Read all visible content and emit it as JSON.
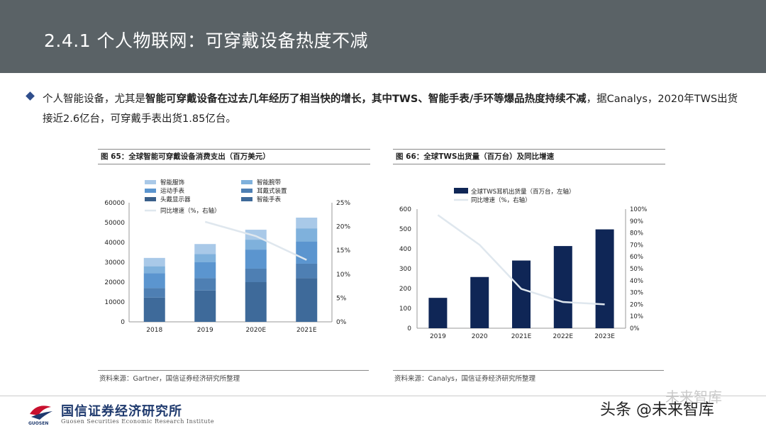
{
  "header": {
    "title": "2.4.1 个人物联网：可穿戴设备热度不减"
  },
  "intro": {
    "p1": "个人智能设备，尤其是",
    "b1": "智能可穿戴设备在过去几年经历了相当快的增长，其中TWS、智能手表/手环等爆品热度持续不减",
    "p2": "，据Canalys，2020年TWS出货接近2.6亿台，可穿戴手表出货1.85亿台。"
  },
  "chart65": {
    "title_bar": "图 65：全球智能可穿戴设备消费支出（百万美元）",
    "source": "资料来源：Gartner，国信证券经济研究所整理",
    "chart_data": {
      "type": "bar",
      "stacked": true,
      "categories": [
        "2018",
        "2019",
        "2020E",
        "2021E"
      ],
      "series": [
        {
          "name": "头戴显示器",
          "values": [
            0,
            0,
            0,
            0
          ]
        },
        {
          "name": "智能手表",
          "values": [
            12200,
            15800,
            20000,
            22000
          ]
        },
        {
          "name": "耳戴式装置",
          "values": [
            4800,
            6200,
            6800,
            7300
          ]
        },
        {
          "name": "运动手表",
          "values": [
            7500,
            8000,
            9600,
            11200
          ]
        },
        {
          "name": "智能腕带",
          "values": [
            3500,
            4100,
            5000,
            6600
          ]
        },
        {
          "name": "智能服饰",
          "values": [
            4200,
            5100,
            5000,
            5400
          ]
        }
      ],
      "line": {
        "name": "同比增速（%，右轴）",
        "values": [
          null,
          21,
          18,
          13
        ]
      },
      "ylim": [
        0,
        60000
      ],
      "yticks": [
        "0",
        "10000",
        "20000",
        "30000",
        "40000",
        "50000",
        "60000"
      ],
      "y2lim": [
        0,
        25
      ],
      "y2ticks": [
        "0%",
        "5%",
        "10%",
        "15%",
        "20%",
        "25%"
      ],
      "colors": {
        "头戴显示器": "#3a5f8a",
        "智能手表": "#3e6a9a",
        "耳戴式装置": "#4e7fb3",
        "运动手表": "#5b95cf",
        "智能腕带": "#7fb1dc",
        "智能服饰": "#a9c9e8",
        "line": "#dfe7ee"
      },
      "legend": [
        "智能服饰",
        "智能腕带",
        "运动手表",
        "耳戴式装置",
        "头戴显示器",
        "智能手表",
        "同比增速（%，右轴）"
      ]
    }
  },
  "chart66": {
    "title_bar": "图 66：全球TWS出货量（百万台）及同比增速",
    "source": "资料来源：Canalys，国信证券经济研究所整理",
    "chart_data": {
      "type": "bar",
      "categories": [
        "2019",
        "2020",
        "2021E",
        "2022E",
        "2023E"
      ],
      "series": [
        {
          "name": "全球TWS耳机出货量（百万台，左轴）",
          "values": [
            153,
            258,
            341,
            414,
            498
          ]
        }
      ],
      "line": {
        "name": "同比增速（%，右轴）",
        "values": [
          95,
          70,
          33,
          22,
          20
        ]
      },
      "ylim": [
        0,
        600
      ],
      "yticks": [
        "0",
        "100",
        "200",
        "300",
        "400",
        "500",
        "600"
      ],
      "y2lim": [
        0,
        100
      ],
      "y2ticks": [
        "0%",
        "10%",
        "20%",
        "30%",
        "40%",
        "50%",
        "60%",
        "70%",
        "80%",
        "90%",
        "100%"
      ],
      "colors": {
        "bar": "#0f2656",
        "line": "#dfe7ee"
      },
      "legend": [
        "全球TWS耳机出货量（百万台，左轴）",
        "同比增速（%，右轴）"
      ]
    }
  },
  "footer": {
    "company": "国信证券经济研究所",
    "company_en": "Guosen Securities Economic Research Institute",
    "logo_word": "GUOSEN",
    "watermark": "头条 @未来智库",
    "watermark_faint": "未来智库"
  }
}
